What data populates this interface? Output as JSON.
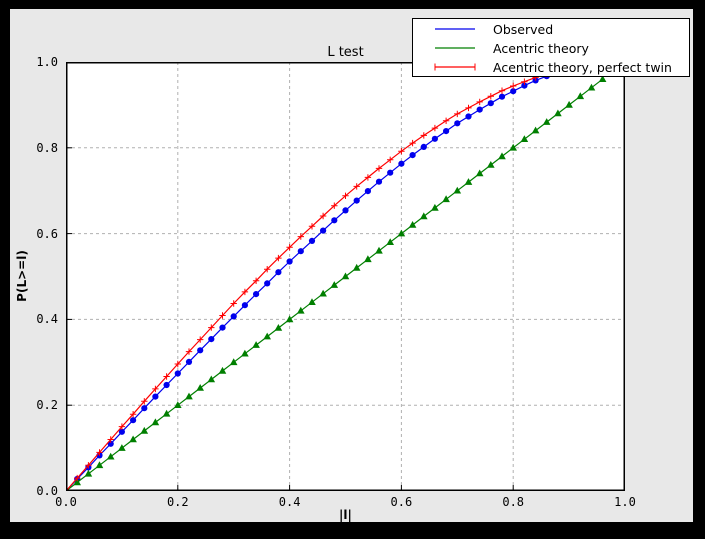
{
  "figure": {
    "frame_color": "#000000",
    "background_color": "#e8e8e8",
    "plot_background": "#ffffff",
    "grid_color": "#b0b0b0",
    "axis_color": "#000000"
  },
  "chart_data": {
    "type": "line",
    "title": "L test",
    "xlabel": "|l|",
    "ylabel": "P(L>=l)",
    "xlim": [
      0.0,
      1.0
    ],
    "ylim": [
      0.0,
      1.0
    ],
    "xtick_labels": [
      "0.0",
      "0.2",
      "0.4",
      "0.6",
      "0.8",
      "1.0"
    ],
    "ytick_labels": [
      "0.0",
      "0.2",
      "0.4",
      "0.6",
      "0.8",
      "1.0"
    ],
    "xtick_values": [
      0.0,
      0.2,
      0.4,
      0.6,
      0.8,
      1.0
    ],
    "ytick_values": [
      0.0,
      0.2,
      0.4,
      0.6,
      0.8,
      1.0
    ],
    "grid": true,
    "grid_style": "dashed",
    "legend_position": "upper right",
    "series": [
      {
        "name": "Observed",
        "color": "#0000ee",
        "marker": "circle",
        "x": [
          0.0,
          0.02,
          0.04,
          0.06,
          0.08,
          0.1,
          0.12,
          0.14,
          0.16,
          0.18,
          0.2,
          0.22,
          0.24,
          0.26,
          0.28,
          0.3,
          0.32,
          0.34,
          0.36,
          0.38,
          0.4,
          0.42,
          0.44,
          0.46,
          0.48,
          0.5,
          0.52,
          0.54,
          0.56,
          0.58,
          0.6,
          0.62,
          0.64,
          0.66,
          0.68,
          0.7,
          0.72,
          0.74,
          0.76,
          0.78,
          0.8,
          0.82,
          0.84,
          0.86
        ],
        "y": [
          0.0,
          0.028,
          0.055,
          0.083,
          0.11,
          0.138,
          0.165,
          0.193,
          0.22,
          0.247,
          0.274,
          0.301,
          0.328,
          0.354,
          0.381,
          0.407,
          0.433,
          0.459,
          0.484,
          0.51,
          0.535,
          0.559,
          0.583,
          0.607,
          0.631,
          0.654,
          0.677,
          0.699,
          0.721,
          0.742,
          0.763,
          0.783,
          0.802,
          0.821,
          0.839,
          0.857,
          0.873,
          0.889,
          0.904,
          0.919,
          0.932,
          0.945,
          0.957,
          0.967
        ]
      },
      {
        "name": "Acentric theory",
        "color": "#007f00",
        "marker": "triangle",
        "x": [
          0.0,
          0.02,
          0.04,
          0.06,
          0.08,
          0.1,
          0.12,
          0.14,
          0.16,
          0.18,
          0.2,
          0.22,
          0.24,
          0.26,
          0.28,
          0.3,
          0.32,
          0.34,
          0.36,
          0.38,
          0.4,
          0.42,
          0.44,
          0.46,
          0.48,
          0.5,
          0.52,
          0.54,
          0.56,
          0.58,
          0.6,
          0.62,
          0.64,
          0.66,
          0.68,
          0.7,
          0.72,
          0.74,
          0.76,
          0.78,
          0.8,
          0.82,
          0.84,
          0.86,
          0.88,
          0.9,
          0.92,
          0.94,
          0.96
        ],
        "y": [
          0.0,
          0.02,
          0.04,
          0.06,
          0.08,
          0.1,
          0.12,
          0.14,
          0.16,
          0.18,
          0.2,
          0.22,
          0.24,
          0.26,
          0.28,
          0.3,
          0.32,
          0.34,
          0.36,
          0.38,
          0.4,
          0.42,
          0.44,
          0.46,
          0.48,
          0.5,
          0.52,
          0.54,
          0.56,
          0.58,
          0.6,
          0.62,
          0.64,
          0.66,
          0.68,
          0.7,
          0.72,
          0.74,
          0.76,
          0.78,
          0.8,
          0.82,
          0.84,
          0.86,
          0.88,
          0.9,
          0.92,
          0.94,
          0.96
        ]
      },
      {
        "name": "Acentric theory, perfect twin",
        "color": "#ff0000",
        "marker": "plus",
        "x": [
          0.0,
          0.02,
          0.04,
          0.06,
          0.08,
          0.1,
          0.12,
          0.14,
          0.16,
          0.18,
          0.2,
          0.22,
          0.24,
          0.26,
          0.28,
          0.3,
          0.32,
          0.34,
          0.36,
          0.38,
          0.4,
          0.42,
          0.44,
          0.46,
          0.48,
          0.5,
          0.52,
          0.54,
          0.56,
          0.58,
          0.6,
          0.62,
          0.64,
          0.66,
          0.68,
          0.7,
          0.72,
          0.74,
          0.76,
          0.78,
          0.8,
          0.82,
          0.84,
          0.86
        ],
        "y": [
          0.0,
          0.03,
          0.06,
          0.09,
          0.12,
          0.15,
          0.179,
          0.209,
          0.238,
          0.267,
          0.296,
          0.325,
          0.353,
          0.381,
          0.409,
          0.437,
          0.464,
          0.49,
          0.517,
          0.543,
          0.568,
          0.593,
          0.617,
          0.641,
          0.665,
          0.688,
          0.71,
          0.731,
          0.752,
          0.772,
          0.792,
          0.811,
          0.829,
          0.846,
          0.863,
          0.879,
          0.893,
          0.907,
          0.92,
          0.933,
          0.944,
          0.954,
          0.964,
          0.972
        ]
      }
    ]
  }
}
